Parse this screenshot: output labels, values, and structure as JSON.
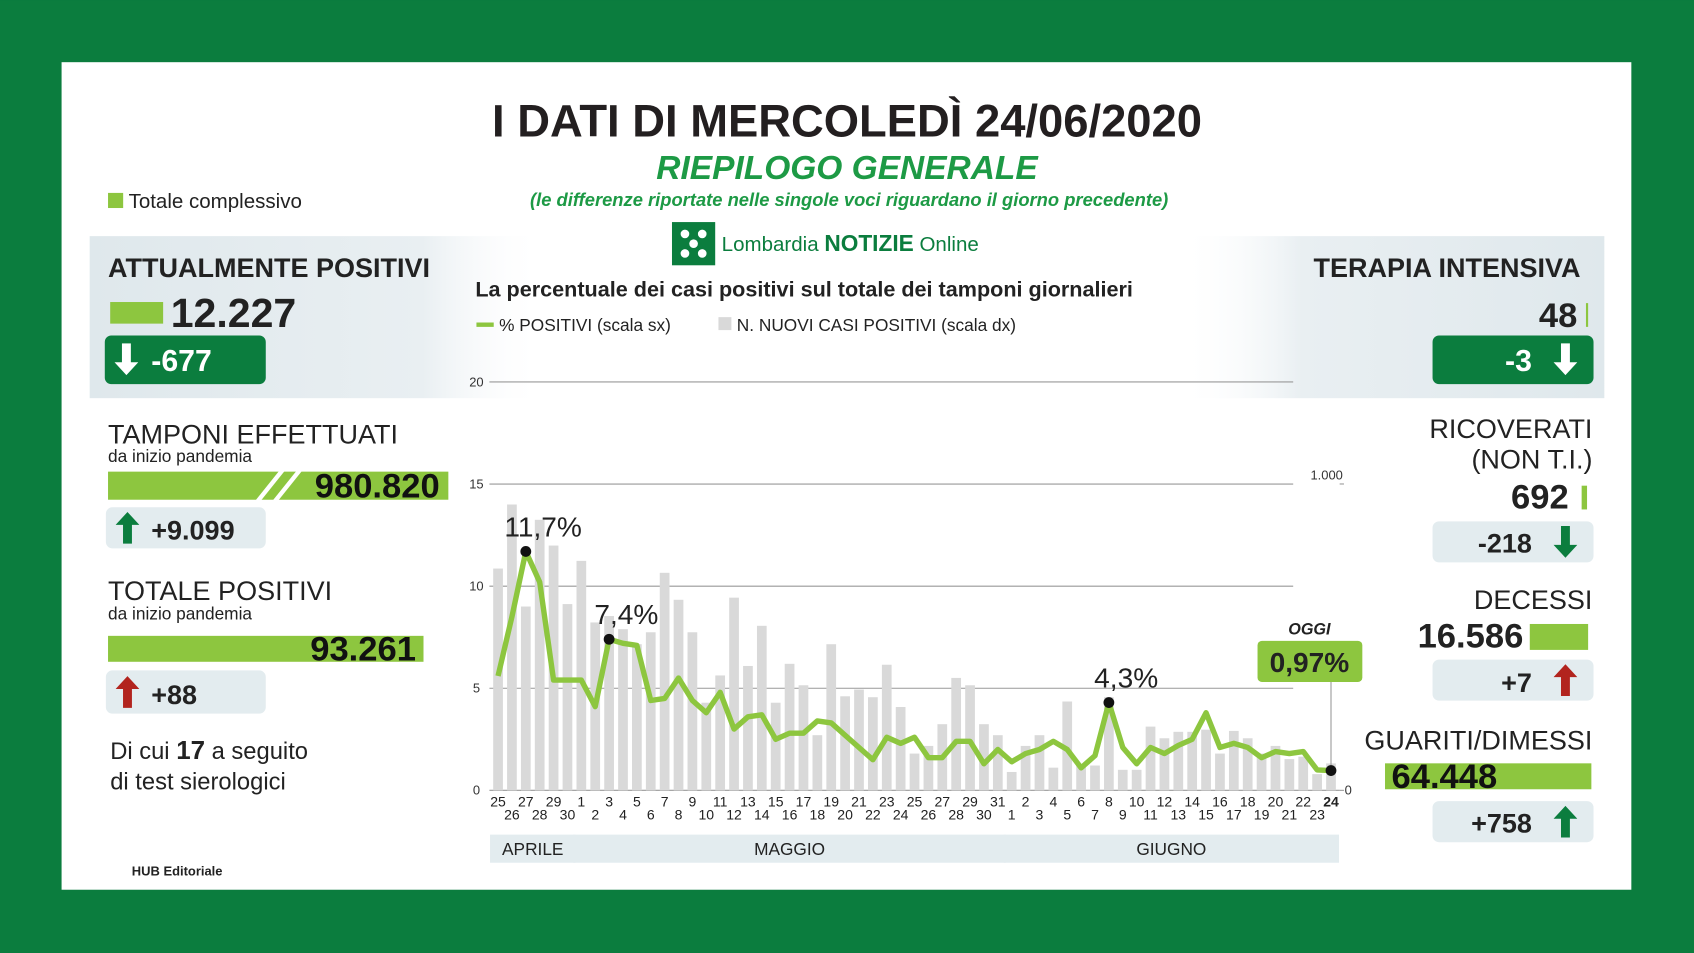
{
  "header": {
    "title": "I DATI DI MERCOLEDÌ 24/06/2020",
    "subtitle": "RIEPILOGO GENERALE",
    "note": "(le differenze riportate nelle singole voci riguardano il giorno precedente)",
    "legend": "Totale complessivo",
    "logo": [
      "Lombardia",
      "NOTIZIE",
      "Online"
    ]
  },
  "left": [
    {
      "label": "ATTUALMENTE POSITIVI",
      "value": "12.227",
      "change": "-677"
    },
    {
      "label": "TAMPONI EFFETTUATI",
      "sublabel": "da inizio pandemia",
      "value": "980.820",
      "change": "+9.099"
    },
    {
      "label": "TOTALE POSITIVI",
      "sublabel": "da inizio pandemia",
      "value": "93.261",
      "change": "+88"
    }
  ],
  "serology": [
    "Di cui",
    "17",
    "a seguito",
    "di test sierologici"
  ],
  "right": [
    {
      "label": "TERAPIA INTENSIVA",
      "value": "48",
      "change": "-3"
    },
    {
      "label": [
        "RICOVERATI",
        "(NON T.I.)"
      ],
      "value": "692",
      "change": "-218"
    },
    {
      "label": "DECESSI",
      "value": "16.586",
      "change": "+7"
    },
    {
      "label": "GUARITI/DIMESSI",
      "value": "64.448",
      "change": "+758"
    }
  ],
  "footer": "HUB Editoriale",
  "chart_data": {
    "type": "combo",
    "title": "La percentuale dei casi positivi sul totale dei tamponi giornalieri",
    "categories": [
      "25",
      "26",
      "27",
      "28",
      "29",
      "30",
      "1",
      "2",
      "3",
      "4",
      "5",
      "6",
      "7",
      "8",
      "9",
      "10",
      "11",
      "12",
      "13",
      "14",
      "15",
      "16",
      "17",
      "18",
      "19",
      "20",
      "21",
      "22",
      "23",
      "24",
      "25",
      "26",
      "27",
      "28",
      "29",
      "30",
      "31",
      "1",
      "2",
      "3",
      "4",
      "5",
      "6",
      "7",
      "8",
      "9",
      "10",
      "11",
      "12",
      "13",
      "14",
      "15",
      "16",
      "17",
      "18",
      "19",
      "20",
      "21",
      "22",
      "23",
      "24"
    ],
    "months": [
      "APRILE",
      "MAGGIO",
      "GIUGNO"
    ],
    "series": [
      {
        "name": "% POSITIVI (scala sx)",
        "color": "#8dc63f",
        "type": "line",
        "values": [
          5.6,
          8.5,
          11.7,
          10.2,
          5.4,
          5.4,
          5.4,
          4.1,
          7.4,
          7.2,
          7.1,
          4.4,
          4.5,
          5.5,
          4.4,
          3.8,
          4.8,
          3.0,
          3.6,
          3.7,
          2.5,
          2.8,
          2.8,
          3.4,
          3.3,
          2.7,
          2.1,
          1.5,
          2.6,
          2.3,
          2.6,
          1.6,
          1.6,
          2.4,
          2.4,
          1.3,
          2.0,
          1.4,
          1.8,
          2.0,
          2.4,
          2.0,
          1.1,
          1.7,
          4.3,
          2.1,
          1.3,
          2.1,
          1.8,
          2.2,
          2.5,
          3.8,
          2.1,
          2.3,
          2.1,
          1.6,
          1.9,
          1.8,
          1.9,
          1.0,
          0.97
        ]
      },
      {
        "name": "N. NUOVI CASI POSITIVI (scala dx)",
        "color": "#d9d9d9",
        "type": "bar",
        "axis": "y2",
        "values": [
          724,
          933,
          600,
          883,
          799,
          608,
          749,
          548,
          569,
          526,
          477,
          516,
          710,
          622,
          516,
          286,
          375,
          629,
          406,
          537,
          286,
          413,
          343,
          180,
          477,
          307,
          329,
          304,
          410,
          272,
          120,
          145,
          216,
          367,
          343,
          216,
          180,
          60,
          145,
          180,
          74,
          290,
          85,
          81,
          304,
          67,
          67,
          208,
          170,
          191,
          191,
          198,
          120,
          194,
          170,
          120,
          145,
          102,
          110,
          53,
          88
        ]
      }
    ],
    "ylim": [
      0,
      20
    ],
    "yticks": [
      0,
      5,
      10,
      15,
      20
    ],
    "y2lim": [
      0,
      1333
    ],
    "y2ticks": [
      0,
      {
        "value": 1000,
        "label": "1.000"
      }
    ],
    "grid": true,
    "annotations": [
      {
        "text": "11,7%",
        "value": 11.7
      },
      {
        "text": "7,4%",
        "value": 7.4
      },
      {
        "text": "4,3%",
        "value": 4.3
      },
      {
        "text": "0,97%",
        "value": 0.97,
        "tag": "OGGI"
      }
    ]
  }
}
